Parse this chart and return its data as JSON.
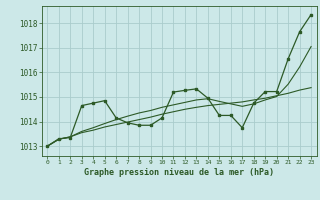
{
  "title": "Graphe pression niveau de la mer (hPa)",
  "bg_color": "#cce8e8",
  "grid_color": "#aacccc",
  "line_color": "#2d5a27",
  "xlim": [
    -0.5,
    23.5
  ],
  "ylim": [
    1012.6,
    1018.7
  ],
  "yticks": [
    1013,
    1014,
    1015,
    1016,
    1017,
    1018
  ],
  "xticks": [
    0,
    1,
    2,
    3,
    4,
    5,
    6,
    7,
    8,
    9,
    10,
    11,
    12,
    13,
    14,
    15,
    16,
    17,
    18,
    19,
    20,
    21,
    22,
    23
  ],
  "series1_x": [
    0,
    1,
    2,
    3,
    4,
    5,
    6,
    7,
    8,
    9,
    10,
    11,
    12,
    13,
    14,
    15,
    16,
    17,
    18,
    19,
    20,
    21,
    22,
    23
  ],
  "series1_y": [
    1013.0,
    1013.3,
    1013.35,
    1014.65,
    1014.75,
    1014.85,
    1014.15,
    1013.95,
    1013.85,
    1013.85,
    1014.15,
    1015.2,
    1015.27,
    1015.33,
    1014.95,
    1014.25,
    1014.25,
    1013.75,
    1014.75,
    1015.22,
    1015.22,
    1016.55,
    1017.65,
    1018.35
  ],
  "series2_x": [
    0,
    1,
    2,
    3,
    4,
    5,
    6,
    7,
    8,
    9,
    10,
    11,
    12,
    13,
    14,
    15,
    16,
    17,
    18,
    19,
    20,
    21,
    22,
    23
  ],
  "series2_y": [
    1013.0,
    1013.28,
    1013.38,
    1013.55,
    1013.65,
    1013.78,
    1013.88,
    1013.98,
    1014.08,
    1014.18,
    1014.3,
    1014.4,
    1014.5,
    1014.58,
    1014.65,
    1014.7,
    1014.75,
    1014.8,
    1014.88,
    1014.95,
    1015.05,
    1015.15,
    1015.28,
    1015.38
  ],
  "series3_x": [
    0,
    1,
    2,
    3,
    4,
    5,
    6,
    7,
    8,
    9,
    10,
    11,
    12,
    13,
    14,
    15,
    16,
    17,
    18,
    19,
    20,
    21,
    22,
    23
  ],
  "series3_y": [
    1013.0,
    1013.28,
    1013.38,
    1013.6,
    1013.75,
    1013.92,
    1014.08,
    1014.22,
    1014.35,
    1014.45,
    1014.58,
    1014.68,
    1014.78,
    1014.88,
    1014.93,
    1014.82,
    1014.72,
    1014.62,
    1014.72,
    1014.88,
    1015.02,
    1015.52,
    1016.22,
    1017.05
  ]
}
